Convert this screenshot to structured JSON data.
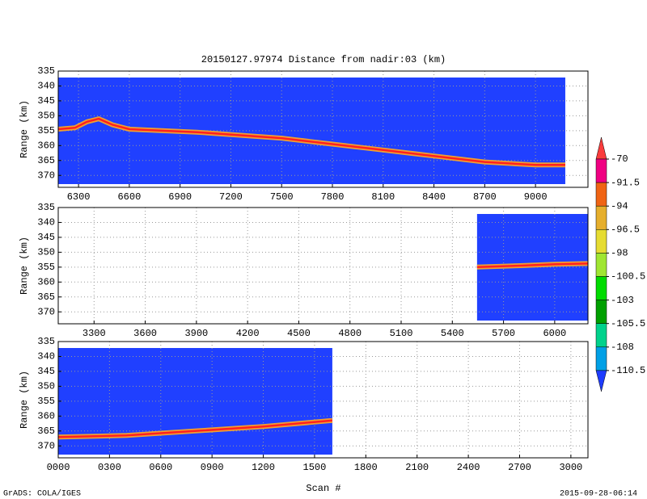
{
  "chart_data": [
    {
      "type": "profile",
      "title": "20150127.97974    Distance from nadir:03 (km)",
      "ylabel": "Range (km)",
      "x": [
        6180,
        6280,
        6350,
        6420,
        6500,
        6600,
        7000,
        7500,
        7800,
        8100,
        8400,
        8700,
        9000,
        9176
      ],
      "values": [
        354.5,
        354,
        352,
        351,
        353,
        354.5,
        355.5,
        357.5,
        359.5,
        361.5,
        363.5,
        365.5,
        366.5,
        366.5
      ],
      "xlim": [
        6180,
        9310
      ],
      "ylim": [
        335,
        374
      ],
      "xticks": [
        6300,
        6600,
        6900,
        7200,
        7500,
        7800,
        8100,
        8400,
        8700,
        9000
      ],
      "yticks": [
        335,
        340,
        345,
        350,
        355,
        360,
        365,
        370
      ],
      "grid": true
    },
    {
      "type": "profile",
      "ylabel": "Range (km)",
      "x": [
        5545,
        5800,
        6000,
        6194
      ],
      "values": [
        355,
        354.5,
        354,
        353.8
      ],
      "xlim": [
        3090,
        6195
      ],
      "ylim": [
        335,
        374
      ],
      "xticks": [
        3300,
        3600,
        3900,
        4200,
        4500,
        4800,
        5100,
        5400,
        5700,
        6000
      ],
      "yticks": [
        335,
        340,
        345,
        350,
        355,
        360,
        365,
        370
      ],
      "grid": true
    },
    {
      "type": "profile",
      "ylabel": "Range (km)",
      "xlabel": "Scan #",
      "x": [
        0,
        400,
        800,
        1200,
        1604
      ],
      "values": [
        367,
        366.5,
        365,
        363.5,
        361.5
      ],
      "xlim": [
        0,
        3100
      ],
      "ylim": [
        335,
        374
      ],
      "xticks": [
        {
          "value": 0,
          "label": "0000"
        },
        {
          "value": 300,
          "label": "0300"
        },
        {
          "value": 600,
          "label": "0600"
        },
        {
          "value": 900,
          "label": "0900"
        },
        1200,
        1500,
        1800,
        2100,
        2400,
        2700,
        3000
      ],
      "yticks": [
        335,
        340,
        345,
        350,
        355,
        360,
        365,
        370
      ],
      "grid": true
    },
    {
      "type": "colorbar",
      "levels": [
        -70,
        -91.5,
        -94,
        -96.5,
        -98,
        -100.5,
        -103,
        -105.5,
        -108,
        -110.5
      ],
      "colors": [
        "#fa3c3c",
        "#f00082",
        "#f06414",
        "#e6af2d",
        "#e6dc32",
        "#a0e632",
        "#00dc00",
        "#00a000",
        "#00d28c",
        "#00a0e6",
        "#1e3cff"
      ]
    }
  ],
  "footer": {
    "left": "GrADS: COLA/IGES",
    "right": "2015-09-28-06:14"
  }
}
